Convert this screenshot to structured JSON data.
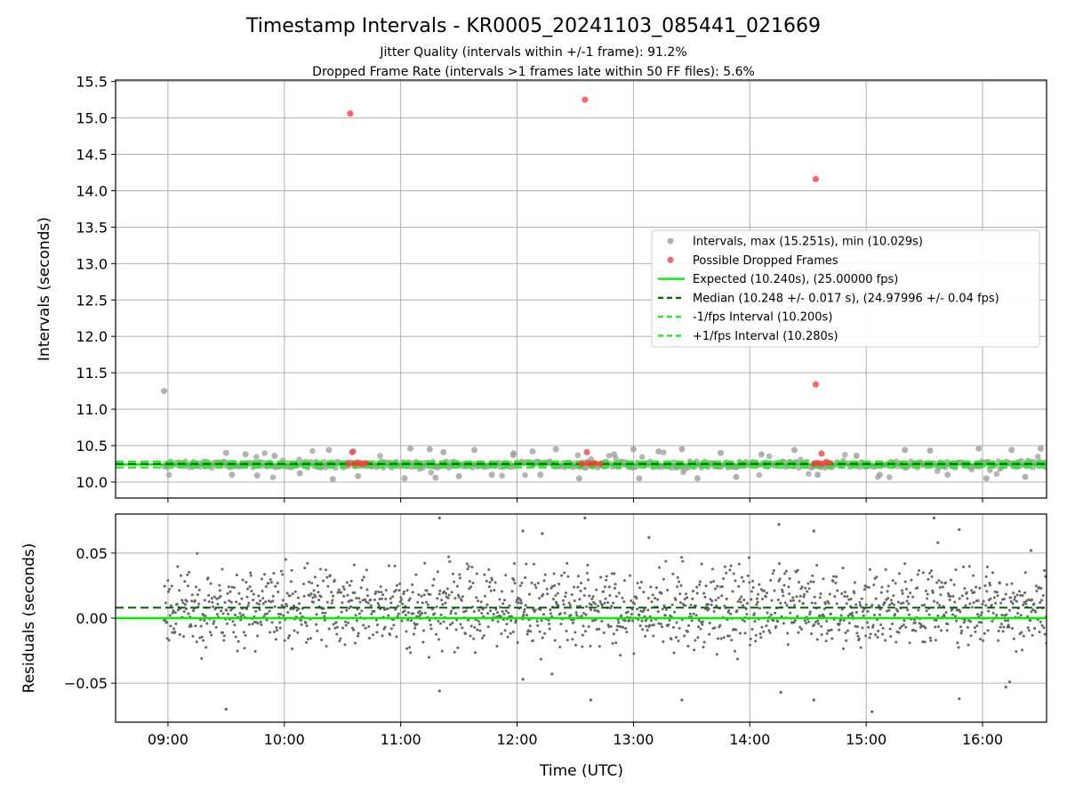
{
  "figure": {
    "title": "Timestamp Intervals - KR0005_20241103_085441_021669",
    "subtitle_1": "Jitter Quality (intervals within +/-1 frame): 91.2%",
    "subtitle_2": "Dropped Frame Rate (intervals >1 frames late within 50 FF files): 5.6%"
  },
  "colors": {
    "intervals": "#9e9e9e",
    "dropped": "#ff3b3b",
    "expected": "#00ee00",
    "median": "#006400",
    "bounds": "#22ee22",
    "residuals": "#666666"
  },
  "chart_data": [
    {
      "type": "scatter",
      "title": "",
      "xlabel": "",
      "ylabel": "Intervals (seconds)",
      "x_ticks": [
        "09:00",
        "10:00",
        "11:00",
        "12:00",
        "13:00",
        "14:00",
        "15:00",
        "16:00"
      ],
      "y_ticks": [
        "10.0",
        "10.5",
        "11.0",
        "11.5",
        "12.0",
        "12.5",
        "13.0",
        "13.5",
        "14.0",
        "14.5",
        "15.0",
        "15.5"
      ],
      "xlim": [
        "08:33",
        "16:33"
      ],
      "ylim": [
        9.78,
        15.52
      ],
      "grid": true,
      "legend": {
        "placement": "center-right",
        "entries": [
          "Intervals, max (15.251s), min (10.029s)",
          "Possible Dropped Frames",
          "Expected (10.240s), (25.00000 fps)",
          "Median (10.248 +/- 0.017 s), (24.97996 +/- 0.04 fps)",
          "-1/fps Interval (10.200s)",
          "+1/fps Interval (10.280s)"
        ]
      },
      "reference_lines": {
        "expected": 10.24,
        "median": 10.248,
        "minus_one_frame": 10.2,
        "plus_one_frame": 10.28
      },
      "series": [
        {
          "name": "Intervals, max (15.251s), min (10.029s)",
          "description_note": "dense band of intervals around 10.24 s",
          "points": [
            [
              "08:58",
              11.25
            ],
            [
              "09:30",
              10.4
            ],
            [
              "09:33",
              10.1
            ],
            [
              "09:40",
              10.38
            ],
            [
              "09:46",
              10.09
            ],
            [
              "09:55",
              10.36
            ],
            [
              "10:08",
              10.12
            ],
            [
              "10:23",
              10.44
            ],
            [
              "10:25",
              10.04
            ],
            [
              "10:38",
              10.08
            ],
            [
              "11:02",
              10.05
            ],
            [
              "11:05",
              10.46
            ],
            [
              "11:15",
              10.45
            ],
            [
              "11:18",
              10.06
            ],
            [
              "11:22",
              10.41
            ],
            [
              "11:30",
              10.08
            ],
            [
              "11:38",
              10.44
            ],
            [
              "11:47",
              10.1
            ],
            [
              "11:58",
              10.37
            ],
            [
              "12:08",
              10.42
            ],
            [
              "12:12",
              10.1
            ],
            [
              "12:20",
              10.45
            ],
            [
              "12:32",
              10.05
            ],
            [
              "12:50",
              10.38
            ],
            [
              "13:00",
              10.45
            ],
            [
              "13:03",
              10.05
            ],
            [
              "13:13",
              10.42
            ],
            [
              "13:25",
              10.45
            ],
            [
              "13:33",
              10.05
            ],
            [
              "13:45",
              10.4
            ],
            [
              "13:53",
              10.07
            ],
            [
              "14:06",
              10.38
            ],
            [
              "14:23",
              10.44
            ],
            [
              "14:35",
              10.1
            ],
            [
              "14:55",
              10.36
            ],
            [
              "15:07",
              10.1
            ],
            [
              "15:20",
              10.44
            ],
            [
              "15:33",
              10.43
            ],
            [
              "15:42",
              10.1
            ],
            [
              "15:58",
              10.46
            ],
            [
              "16:02",
              10.05
            ],
            [
              "16:15",
              10.44
            ],
            [
              "16:22",
              10.07
            ],
            [
              "16:30",
              10.46
            ]
          ]
        },
        {
          "name": "Possible Dropped Frames",
          "points": [
            [
              "10:34",
              15.06
            ],
            [
              "12:35",
              15.25
            ],
            [
              "14:34",
              14.16
            ],
            [
              "14:34",
              11.34
            ],
            [
              "10:35",
              10.41
            ],
            [
              "12:36",
              10.41
            ],
            [
              "14:37",
              10.39
            ],
            [
              "10:33",
              10.25
            ],
            [
              "10:36",
              10.25
            ],
            [
              "10:38",
              10.26
            ],
            [
              "10:40",
              10.25
            ],
            [
              "10:42",
              10.26
            ],
            [
              "12:33",
              10.25
            ],
            [
              "12:36",
              10.26
            ],
            [
              "12:38",
              10.25
            ],
            [
              "12:40",
              10.26
            ],
            [
              "12:43",
              10.25
            ],
            [
              "14:33",
              10.25
            ],
            [
              "14:35",
              10.26
            ],
            [
              "14:37",
              10.25
            ],
            [
              "14:39",
              10.27
            ],
            [
              "14:41",
              10.26
            ]
          ]
        }
      ]
    },
    {
      "type": "scatter",
      "title": "",
      "xlabel": "Time (UTC)",
      "ylabel": "Residuals (seconds)",
      "x_ticks": [
        "09:00",
        "10:00",
        "11:00",
        "12:00",
        "13:00",
        "14:00",
        "15:00",
        "16:00"
      ],
      "y_ticks": [
        "−0.05",
        "0.00",
        "0.05"
      ],
      "xlim": [
        "08:33",
        "16:33"
      ],
      "ylim": [
        -0.08,
        0.08
      ],
      "grid": true,
      "reference_lines": {
        "expected": 0.0,
        "median": 0.008
      },
      "series": [
        {
          "name": "",
          "description_note": "residual scatter mostly between -0.03 and 0.04 s",
          "points": [
            [
              "09:30",
              -0.07
            ],
            [
              "11:20",
              -0.056
            ],
            [
              "11:20",
              0.077
            ],
            [
              "12:03",
              -0.047
            ],
            [
              "12:03",
              0.067
            ],
            [
              "12:13",
              0.065
            ],
            [
              "12:18",
              -0.043
            ],
            [
              "12:35",
              0.077
            ],
            [
              "12:38",
              -0.063
            ],
            [
              "13:08",
              0.062
            ],
            [
              "13:25",
              -0.063
            ],
            [
              "14:15",
              0.072
            ],
            [
              "14:16",
              -0.057
            ],
            [
              "14:33",
              -0.063
            ],
            [
              "14:33",
              0.067
            ],
            [
              "15:03",
              -0.072
            ],
            [
              "15:35",
              0.077
            ],
            [
              "15:37",
              0.058
            ],
            [
              "15:48",
              -0.062
            ],
            [
              "15:48",
              0.068
            ],
            [
              "16:12",
              -0.053
            ],
            [
              "16:14",
              -0.049
            ],
            [
              "16:25",
              0.052
            ]
          ]
        }
      ]
    }
  ]
}
